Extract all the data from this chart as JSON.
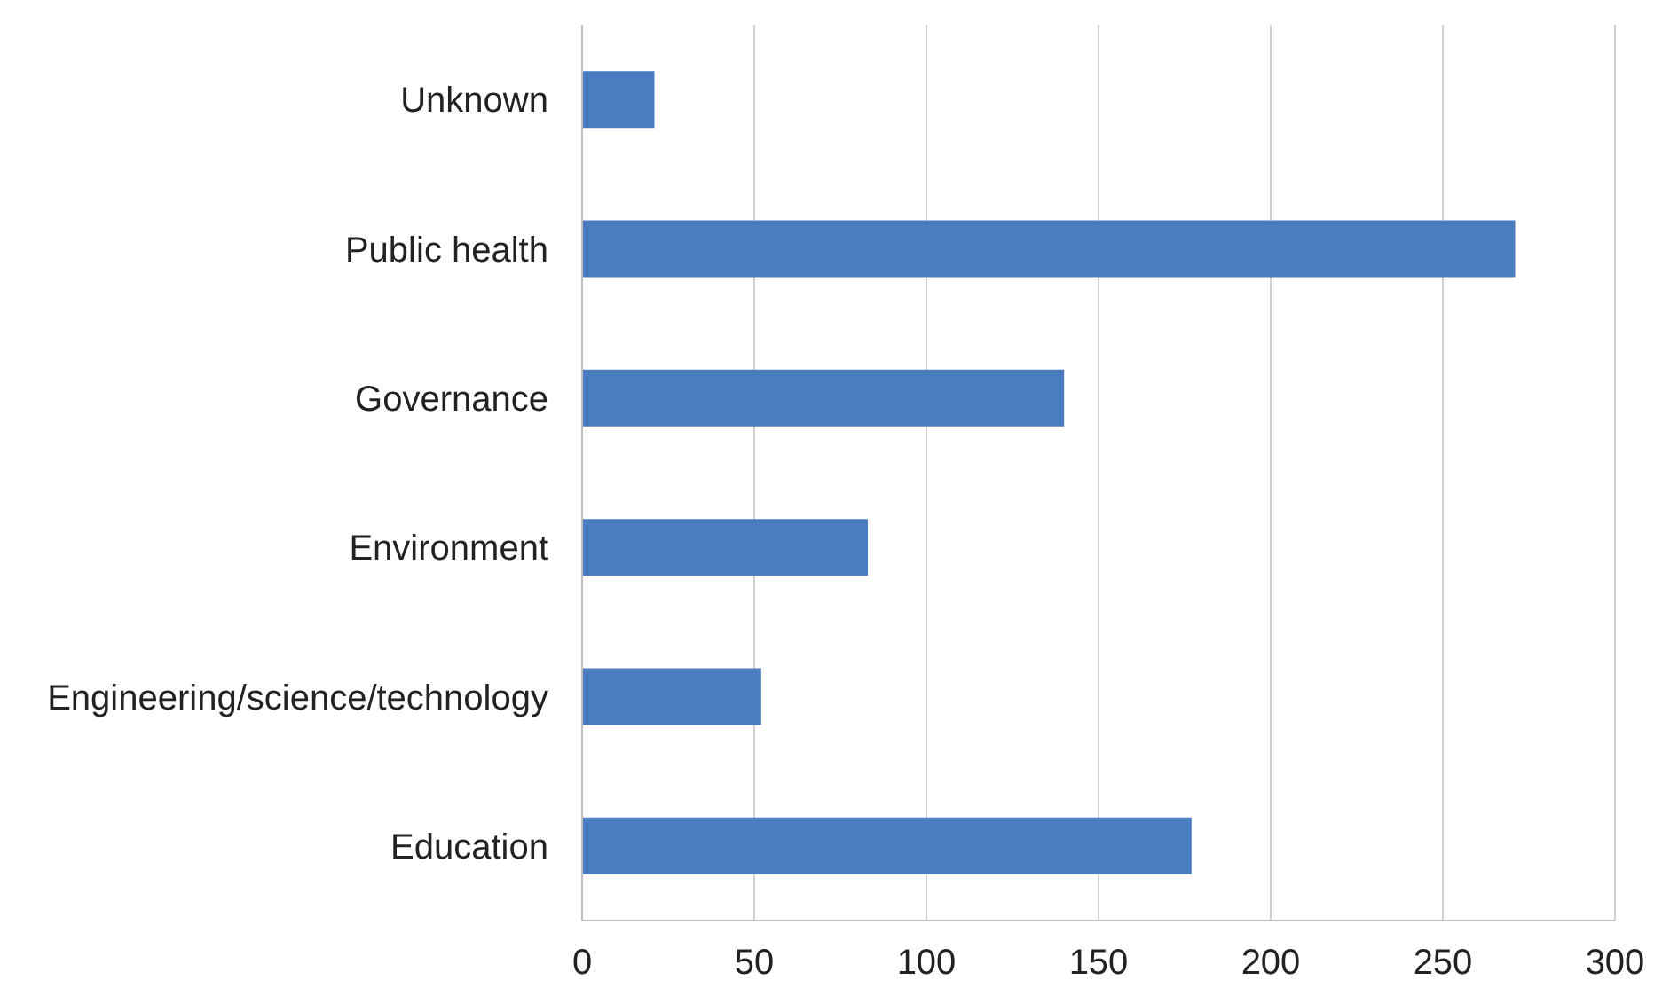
{
  "chart_data": {
    "type": "bar",
    "orientation": "horizontal",
    "categories": [
      "Unknown",
      "Public health",
      "Governance",
      "Environment",
      "Engineering/science/technology",
      "Education"
    ],
    "values": [
      21,
      271,
      140,
      83,
      52,
      177
    ],
    "color": "#4a7dc0",
    "xlim": [
      0,
      300
    ],
    "xticks": [
      0,
      50,
      100,
      150,
      200,
      250,
      300
    ],
    "grid": "x"
  }
}
